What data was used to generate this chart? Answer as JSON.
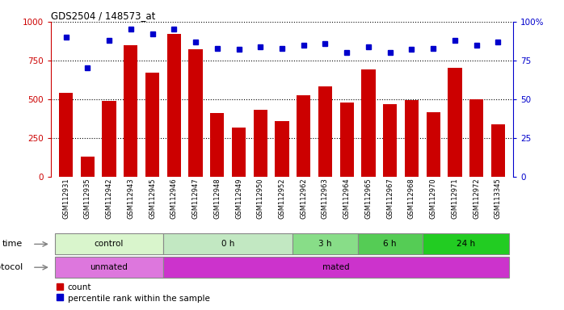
{
  "title": "GDS2504 / 148573_at",
  "samples": [
    "GSM112931",
    "GSM112935",
    "GSM112942",
    "GSM112943",
    "GSM112945",
    "GSM112946",
    "GSM112947",
    "GSM112948",
    "GSM112949",
    "GSM112950",
    "GSM112952",
    "GSM112962",
    "GSM112963",
    "GSM112964",
    "GSM112965",
    "GSM112967",
    "GSM112968",
    "GSM112970",
    "GSM112971",
    "GSM112972",
    "GSM113345"
  ],
  "counts": [
    540,
    130,
    490,
    850,
    670,
    920,
    820,
    410,
    315,
    430,
    360,
    525,
    585,
    480,
    690,
    470,
    495,
    415,
    700,
    500,
    340
  ],
  "percentile_ranks": [
    90,
    70,
    88,
    95,
    92,
    95,
    87,
    83,
    82,
    84,
    83,
    85,
    86,
    80,
    84,
    80,
    82,
    83,
    88,
    85,
    87
  ],
  "bar_color": "#cc0000",
  "dot_color": "#0000cc",
  "bg_color": "#ffffff",
  "ylim_left": [
    0,
    1000
  ],
  "ylim_right": [
    0,
    100
  ],
  "yticks_left": [
    0,
    250,
    500,
    750,
    1000
  ],
  "yticks_right": [
    0,
    25,
    50,
    75,
    100
  ],
  "time_groups": [
    {
      "label": "control",
      "start": 0,
      "end": 5,
      "color": "#d9f5cc"
    },
    {
      "label": "0 h",
      "start": 5,
      "end": 11,
      "color": "#c2e8c2"
    },
    {
      "label": "3 h",
      "start": 11,
      "end": 14,
      "color": "#88dd88"
    },
    {
      "label": "6 h",
      "start": 14,
      "end": 17,
      "color": "#55cc55"
    },
    {
      "label": "24 h",
      "start": 17,
      "end": 21,
      "color": "#22cc22"
    }
  ],
  "protocol_groups": [
    {
      "label": "unmated",
      "start": 0,
      "end": 5,
      "color": "#dd77dd"
    },
    {
      "label": "mated",
      "start": 5,
      "end": 21,
      "color": "#cc33cc"
    }
  ],
  "time_label": "time",
  "protocol_label": "protocol",
  "legend_count": "count",
  "legend_pct": "percentile rank within the sample"
}
